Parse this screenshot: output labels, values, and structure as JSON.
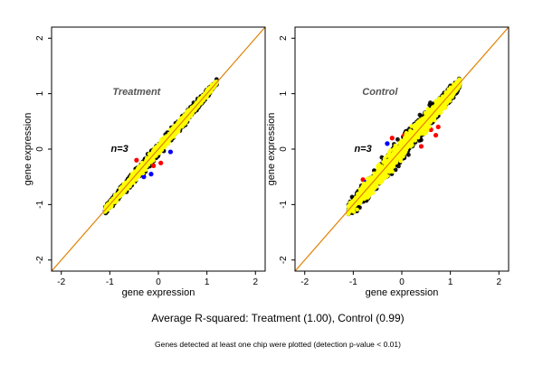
{
  "caption": {
    "main": "Average R-squared: Treatment (1.00), Control (0.99)",
    "sub": "Genes detected at least one chip were plotted (detection p-value < 0.01)"
  },
  "colors": {
    "points": "#ffff00",
    "outliers_high": "#ff0000",
    "outliers_low": "#0000ff",
    "diagonal": "#e08000",
    "edge": "#000000",
    "panel_label": "#555555"
  },
  "chart_data": [
    {
      "type": "scatter",
      "title": "Treatment",
      "annotation": "n=3",
      "xlabel": "gene expression",
      "ylabel": "gene expression",
      "xlim": [
        -2.2,
        2.2
      ],
      "ylim": [
        -2.2,
        2.2
      ],
      "xticks": [
        -2,
        -1,
        0,
        1,
        2
      ],
      "yticks": [
        -2,
        -1,
        0,
        1,
        2
      ],
      "diagonal": true,
      "cloud": {
        "x_range": [
          -1.1,
          1.2
        ],
        "spread": 0.07
      },
      "series": [
        {
          "color": "red",
          "points": [
            [
              -0.45,
              -0.2
            ],
            [
              0.05,
              -0.25
            ],
            [
              -0.1,
              -0.3
            ]
          ]
        },
        {
          "color": "blue",
          "points": [
            [
              0.25,
              -0.05
            ],
            [
              -0.15,
              -0.45
            ],
            [
              -0.3,
              -0.5
            ]
          ]
        }
      ]
    },
    {
      "type": "scatter",
      "title": "Control",
      "annotation": "n=3",
      "xlabel": "gene expression",
      "ylabel": "gene expression",
      "xlim": [
        -2.2,
        2.2
      ],
      "ylim": [
        -2.2,
        2.2
      ],
      "xticks": [
        -2,
        -1,
        0,
        1,
        2
      ],
      "yticks": [
        -2,
        -1,
        0,
        1,
        2
      ],
      "diagonal": true,
      "cloud": {
        "x_range": [
          -1.1,
          1.2
        ],
        "spread": 0.13
      },
      "series": [
        {
          "color": "red",
          "points": [
            [
              -0.8,
              -0.55
            ],
            [
              -0.2,
              0.2
            ],
            [
              0.05,
              0.25
            ],
            [
              0.6,
              0.35
            ],
            [
              0.4,
              0.05
            ],
            [
              -0.35,
              -0.35
            ],
            [
              0.75,
              0.4
            ],
            [
              0.7,
              0.25
            ]
          ]
        },
        {
          "color": "blue",
          "points": [
            [
              -0.75,
              -0.6
            ],
            [
              -0.3,
              0.1
            ],
            [
              0.3,
              0.45
            ]
          ]
        }
      ]
    }
  ]
}
